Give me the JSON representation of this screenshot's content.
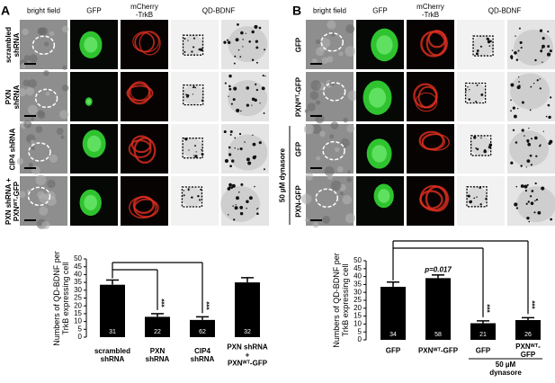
{
  "panel_labels": [
    "A",
    "B"
  ],
  "panel_a": {
    "columns": [
      "bright field",
      "GFP",
      "mCherry\n-TrkB",
      "QD-BDNF"
    ],
    "rows": [
      "scrambled\nshRNA",
      "PXN\nshRNA",
      "CIP4 shRNA",
      "PXN shRNA +\nPXNᵂᵀ-GFP"
    ]
  },
  "panel_b": {
    "columns": [
      "bright field",
      "GFP",
      "mCherry\n-TrkB",
      "QD-BDNF"
    ],
    "rows": [
      "GFP",
      "PXNᵂᵀ-GFP",
      "GFP",
      "PXN-GFP"
    ],
    "group_label": "50 µM dynasore"
  },
  "chart_data": [
    {
      "type": "bar",
      "ylabel": "Numbers of QD-BDNF per\nTrkB expressing cell",
      "categories": [
        "scrambled\nshRNA",
        "PXN\nshRNA",
        "CIP4\nshRNA",
        "PXN shRNA\n+\nPXNᵂᵀ-GFP"
      ],
      "values": [
        33.5,
        13,
        11,
        35
      ],
      "errors": [
        3,
        2,
        2,
        3
      ],
      "n": [
        "31",
        "22",
        "62",
        "32"
      ],
      "color": "#000000",
      "ylim": [
        0,
        50
      ],
      "yticks": [
        0,
        5,
        10,
        15,
        20,
        25,
        30,
        35,
        40,
        45,
        50
      ],
      "annotations": [
        "***",
        "***"
      ]
    },
    {
      "type": "bar",
      "ylabel": "Numbers of QD-BDNF per\nTrkB expressing cell",
      "categories": [
        "GFP",
        "PXNᵂᵀ-GFP",
        "GFP",
        "PXNᵂᵀ-GFP"
      ],
      "values": [
        33.5,
        39,
        10.5,
        12.5
      ],
      "errors": [
        3,
        2,
        1.5,
        1.5
      ],
      "n": [
        "34",
        "58",
        "21",
        "26"
      ],
      "color": "#000000",
      "ylim": [
        0,
        50
      ],
      "yticks": [
        0,
        5,
        10,
        15,
        20,
        25,
        30,
        35,
        40,
        45,
        50
      ],
      "annotations": [
        "p=0.017",
        "***",
        "***"
      ],
      "group_label": "50 µM dynasore"
    }
  ]
}
